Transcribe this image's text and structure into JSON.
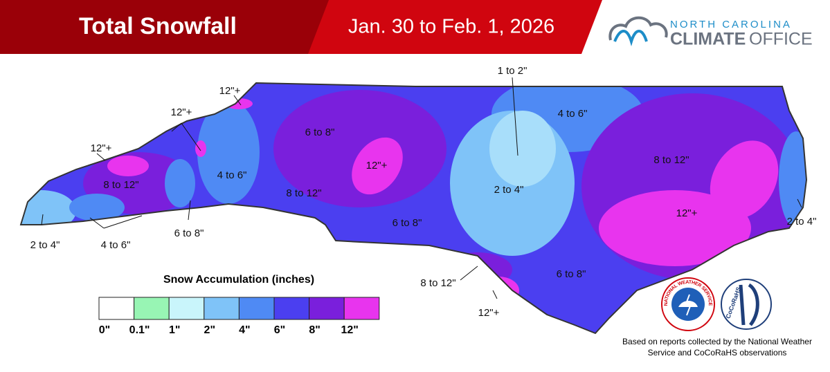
{
  "header": {
    "title": "Total Snowfall",
    "dates": "Jan. 30 to Feb. 1, 2026",
    "org_top": "NORTH CAROLINA",
    "org_left": "CLIMATE",
    "org_right": "OFFICE"
  },
  "map_labels": [
    "12\"+",
    "12\"+",
    "12\"+",
    "8 to 12\"",
    "4 to 6\"",
    "6 to 8\"",
    "12\"+",
    "8 to 12\"",
    "1 to 2\"",
    "4 to 6\"",
    "2 to 4\"",
    "6 to 8\"",
    "8 to 12\"",
    "12\"+",
    "2 to 4\"",
    "2 to 4\"",
    "4 to 6\"",
    "6 to 8\"",
    "8 to 12\"",
    "12\"+",
    "6 to 8\""
  ],
  "legend": {
    "title": "Snow Accumulation (inches)",
    "colors": [
      "#ffffff",
      "#98f5b4",
      "#c9f5fb",
      "#7fc3f8",
      "#4f8af4",
      "#4b3ff0",
      "#7a1fdc",
      "#e834ee"
    ],
    "ticks": [
      "0\"",
      "0.1\"",
      "1\"",
      "2\"",
      "4\"",
      "6\"",
      "8\"",
      "12\""
    ]
  },
  "logos": {
    "nws": "NATIONAL WEATHER SERVICE",
    "cocorahs": "CoCoRaHS"
  },
  "footnote": [
    "Based on reports collected by the National Weather",
    "Service and CoCoRaHS observations"
  ]
}
